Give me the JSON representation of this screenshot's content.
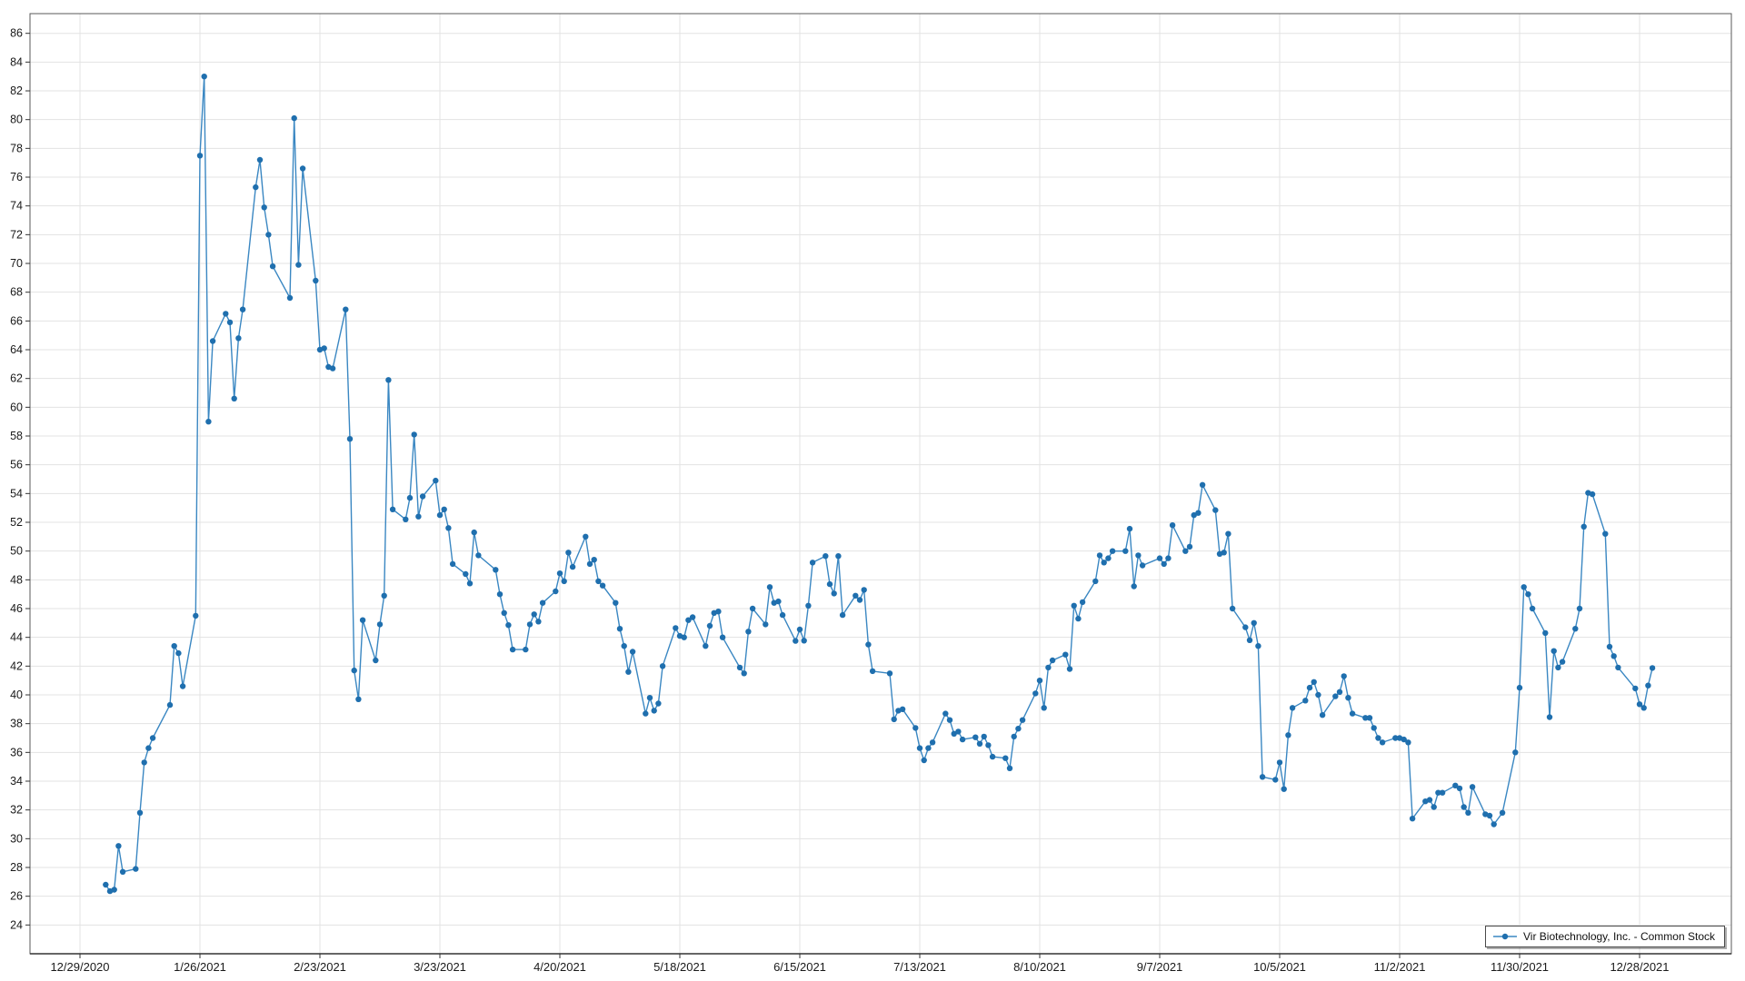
{
  "legend": {
    "position": "bottom-right"
  },
  "colors": {
    "series_line": "#3a87c2",
    "series_marker": "#1f6fae",
    "grid": "#e3e3e3",
    "plot_border": "#595959",
    "axis_line": "#333333",
    "tick_mark": "#333333",
    "tick_label": "#1a1a1a",
    "background": "#ffffff"
  },
  "chart_data": {
    "type": "line",
    "title": "",
    "xlabel": "",
    "ylabel": "",
    "grid": true,
    "legend_position": "bottom-right",
    "y_axis": {
      "min": 22,
      "max": 87.4,
      "ticks": [
        24,
        26,
        28,
        30,
        32,
        34,
        36,
        38,
        40,
        42,
        44,
        46,
        48,
        50,
        52,
        54,
        56,
        58,
        60,
        62,
        64,
        66,
        68,
        70,
        72,
        74,
        76,
        78,
        80,
        82,
        84,
        86
      ]
    },
    "x_axis": {
      "ticks": [
        {
          "date": "2020-12-29",
          "label": "12/29/2020"
        },
        {
          "date": "2021-01-26",
          "label": "1/26/2021"
        },
        {
          "date": "2021-02-23",
          "label": "2/23/2021"
        },
        {
          "date": "2021-03-23",
          "label": "3/23/2021"
        },
        {
          "date": "2021-04-20",
          "label": "4/20/2021"
        },
        {
          "date": "2021-05-18",
          "label": "5/18/2021"
        },
        {
          "date": "2021-06-15",
          "label": "6/15/2021"
        },
        {
          "date": "2021-07-13",
          "label": "7/13/2021"
        },
        {
          "date": "2021-08-10",
          "label": "8/10/2021"
        },
        {
          "date": "2021-09-07",
          "label": "9/7/2021"
        },
        {
          "date": "2021-10-05",
          "label": "10/5/2021"
        },
        {
          "date": "2021-11-02",
          "label": "11/2/2021"
        },
        {
          "date": "2021-11-30",
          "label": "11/30/2021"
        },
        {
          "date": "2021-12-28",
          "label": "12/28/2021"
        }
      ]
    },
    "series": [
      {
        "name": "Vir Biotechnology, Inc. - Common Stock",
        "marker": "circle",
        "dates": [
          "2021-01-04",
          "2021-01-05",
          "2021-01-06",
          "2021-01-07",
          "2021-01-08",
          "2021-01-11",
          "2021-01-12",
          "2021-01-13",
          "2021-01-14",
          "2021-01-15",
          "2021-01-19",
          "2021-01-20",
          "2021-01-21",
          "2021-01-22",
          "2021-01-25",
          "2021-01-26",
          "2021-01-27",
          "2021-01-28",
          "2021-01-29",
          "2021-02-01",
          "2021-02-02",
          "2021-02-03",
          "2021-02-04",
          "2021-02-05",
          "2021-02-08",
          "2021-02-09",
          "2021-02-10",
          "2021-02-11",
          "2021-02-12",
          "2021-02-16",
          "2021-02-17",
          "2021-02-18",
          "2021-02-19",
          "2021-02-22",
          "2021-02-23",
          "2021-02-24",
          "2021-02-25",
          "2021-02-26",
          "2021-03-01",
          "2021-03-02",
          "2021-03-03",
          "2021-03-04",
          "2021-03-05",
          "2021-03-08",
          "2021-03-09",
          "2021-03-10",
          "2021-03-11",
          "2021-03-12",
          "2021-03-15",
          "2021-03-16",
          "2021-03-17",
          "2021-03-18",
          "2021-03-19",
          "2021-03-22",
          "2021-03-23",
          "2021-03-24",
          "2021-03-25",
          "2021-03-26",
          "2021-03-29",
          "2021-03-30",
          "2021-03-31",
          "2021-04-01",
          "2021-04-05",
          "2021-04-06",
          "2021-04-07",
          "2021-04-08",
          "2021-04-09",
          "2021-04-12",
          "2021-04-13",
          "2021-04-14",
          "2021-04-15",
          "2021-04-16",
          "2021-04-19",
          "2021-04-20",
          "2021-04-21",
          "2021-04-22",
          "2021-04-23",
          "2021-04-26",
          "2021-04-27",
          "2021-04-28",
          "2021-04-29",
          "2021-04-30",
          "2021-05-03",
          "2021-05-04",
          "2021-05-05",
          "2021-05-06",
          "2021-05-07",
          "2021-05-10",
          "2021-05-11",
          "2021-05-12",
          "2021-05-13",
          "2021-05-14",
          "2021-05-17",
          "2021-05-18",
          "2021-05-19",
          "2021-05-20",
          "2021-05-21",
          "2021-05-24",
          "2021-05-25",
          "2021-05-26",
          "2021-05-27",
          "2021-05-28",
          "2021-06-01",
          "2021-06-02",
          "2021-06-03",
          "2021-06-04",
          "2021-06-07",
          "2021-06-08",
          "2021-06-09",
          "2021-06-10",
          "2021-06-11",
          "2021-06-14",
          "2021-06-15",
          "2021-06-16",
          "2021-06-17",
          "2021-06-18",
          "2021-06-21",
          "2021-06-22",
          "2021-06-23",
          "2021-06-24",
          "2021-06-25",
          "2021-06-28",
          "2021-06-29",
          "2021-06-30",
          "2021-07-01",
          "2021-07-02",
          "2021-07-06",
          "2021-07-07",
          "2021-07-08",
          "2021-07-09",
          "2021-07-12",
          "2021-07-13",
          "2021-07-14",
          "2021-07-15",
          "2021-07-16",
          "2021-07-19",
          "2021-07-20",
          "2021-07-21",
          "2021-07-22",
          "2021-07-23",
          "2021-07-26",
          "2021-07-27",
          "2021-07-28",
          "2021-07-29",
          "2021-07-30",
          "2021-08-02",
          "2021-08-03",
          "2021-08-04",
          "2021-08-05",
          "2021-08-06",
          "2021-08-09",
          "2021-08-10",
          "2021-08-11",
          "2021-08-12",
          "2021-08-13",
          "2021-08-16",
          "2021-08-17",
          "2021-08-18",
          "2021-08-19",
          "2021-08-20",
          "2021-08-23",
          "2021-08-24",
          "2021-08-25",
          "2021-08-26",
          "2021-08-27",
          "2021-08-30",
          "2021-08-31",
          "2021-09-01",
          "2021-09-02",
          "2021-09-03",
          "2021-09-07",
          "2021-09-08",
          "2021-09-09",
          "2021-09-10",
          "2021-09-13",
          "2021-09-14",
          "2021-09-15",
          "2021-09-16",
          "2021-09-17",
          "2021-09-20",
          "2021-09-21",
          "2021-09-22",
          "2021-09-23",
          "2021-09-24",
          "2021-09-27",
          "2021-09-28",
          "2021-09-29",
          "2021-09-30",
          "2021-10-01",
          "2021-10-04",
          "2021-10-05",
          "2021-10-06",
          "2021-10-07",
          "2021-10-08",
          "2021-10-11",
          "2021-10-12",
          "2021-10-13",
          "2021-10-14",
          "2021-10-15",
          "2021-10-18",
          "2021-10-19",
          "2021-10-20",
          "2021-10-21",
          "2021-10-22",
          "2021-10-25",
          "2021-10-26",
          "2021-10-27",
          "2021-10-28",
          "2021-10-29",
          "2021-11-01",
          "2021-11-02",
          "2021-11-03",
          "2021-11-04",
          "2021-11-05",
          "2021-11-08",
          "2021-11-09",
          "2021-11-10",
          "2021-11-11",
          "2021-11-12",
          "2021-11-15",
          "2021-11-16",
          "2021-11-17",
          "2021-11-18",
          "2021-11-19",
          "2021-11-22",
          "2021-11-23",
          "2021-11-24",
          "2021-11-26",
          "2021-11-29",
          "2021-11-30",
          "2021-12-01",
          "2021-12-02",
          "2021-12-03",
          "2021-12-06",
          "2021-12-07",
          "2021-12-08",
          "2021-12-09",
          "2021-12-10",
          "2021-12-13",
          "2021-12-14",
          "2021-12-15",
          "2021-12-16",
          "2021-12-17",
          "2021-12-20",
          "2021-12-21",
          "2021-12-22",
          "2021-12-23",
          "2021-12-27",
          "2021-12-28",
          "2021-12-29",
          "2021-12-30",
          "2021-12-31"
        ],
        "closes": [
          26.8,
          26.35,
          26.45,
          29.5,
          27.7,
          27.9,
          31.8,
          35.3,
          36.3,
          37.0,
          39.3,
          43.4,
          42.9,
          40.6,
          45.5,
          77.5,
          83.0,
          59.0,
          64.6,
          66.5,
          65.9,
          60.6,
          64.8,
          66.8,
          75.3,
          77.2,
          73.9,
          72.0,
          69.8,
          67.6,
          80.1,
          69.9,
          76.6,
          68.8,
          64.0,
          64.1,
          62.8,
          62.7,
          66.8,
          57.8,
          41.7,
          39.7,
          45.2,
          42.4,
          44.9,
          46.9,
          61.9,
          52.9,
          52.2,
          53.7,
          58.1,
          52.4,
          53.8,
          54.9,
          52.5,
          52.9,
          51.6,
          49.1,
          48.4,
          47.75,
          51.3,
          49.7,
          48.7,
          47.0,
          45.7,
          44.85,
          43.15,
          43.15,
          44.9,
          45.6,
          45.1,
          46.4,
          47.2,
          48.45,
          47.9,
          49.9,
          48.9,
          51.0,
          49.1,
          49.4,
          47.9,
          47.6,
          46.4,
          44.6,
          43.4,
          41.6,
          43.0,
          38.7,
          39.8,
          38.9,
          39.4,
          42.0,
          44.65,
          44.1,
          44.0,
          45.2,
          45.4,
          43.4,
          44.8,
          45.7,
          45.8,
          44.0,
          41.9,
          41.5,
          44.4,
          46.0,
          44.9,
          47.5,
          46.4,
          46.5,
          45.55,
          43.75,
          44.55,
          43.77,
          46.2,
          49.2,
          49.65,
          47.7,
          47.05,
          49.65,
          45.55,
          46.9,
          46.6,
          47.3,
          43.5,
          41.65,
          41.5,
          38.3,
          38.9,
          39.0,
          37.7,
          36.3,
          35.45,
          36.3,
          36.7,
          38.7,
          38.25,
          37.3,
          37.45,
          36.9,
          37.05,
          36.6,
          37.1,
          36.5,
          35.7,
          35.6,
          34.9,
          37.1,
          37.65,
          38.25,
          40.1,
          41.0,
          39.1,
          41.9,
          42.4,
          42.8,
          41.8,
          46.2,
          45.3,
          46.45,
          47.9,
          49.7,
          49.2,
          49.5,
          50.0,
          50.0,
          51.55,
          47.55,
          49.7,
          49.0,
          49.5,
          49.1,
          49.5,
          51.8,
          50.0,
          50.3,
          52.5,
          52.65,
          54.6,
          52.85,
          49.8,
          49.9,
          51.2,
          46.0,
          44.7,
          43.8,
          45.0,
          43.4,
          34.3,
          34.1,
          35.3,
          33.45,
          37.2,
          39.1,
          39.6,
          40.5,
          40.9,
          40.0,
          38.6,
          39.9,
          40.2,
          41.3,
          39.8,
          38.7,
          38.4,
          38.4,
          37.7,
          37.0,
          36.7,
          37.0,
          37.0,
          36.9,
          36.7,
          31.4,
          32.6,
          32.7,
          32.2,
          33.2,
          33.2,
          33.7,
          33.5,
          32.2,
          31.8,
          33.6,
          31.7,
          31.6,
          31.0,
          31.8,
          36.0,
          40.5,
          47.5,
          47.0,
          46.0,
          44.3,
          38.45,
          43.05,
          41.9,
          42.3,
          44.6,
          46.0,
          51.7,
          54.05,
          53.95,
          51.2,
          43.35,
          42.7,
          41.9,
          40.45,
          39.35,
          39.1,
          40.65,
          41.87
        ]
      }
    ]
  }
}
